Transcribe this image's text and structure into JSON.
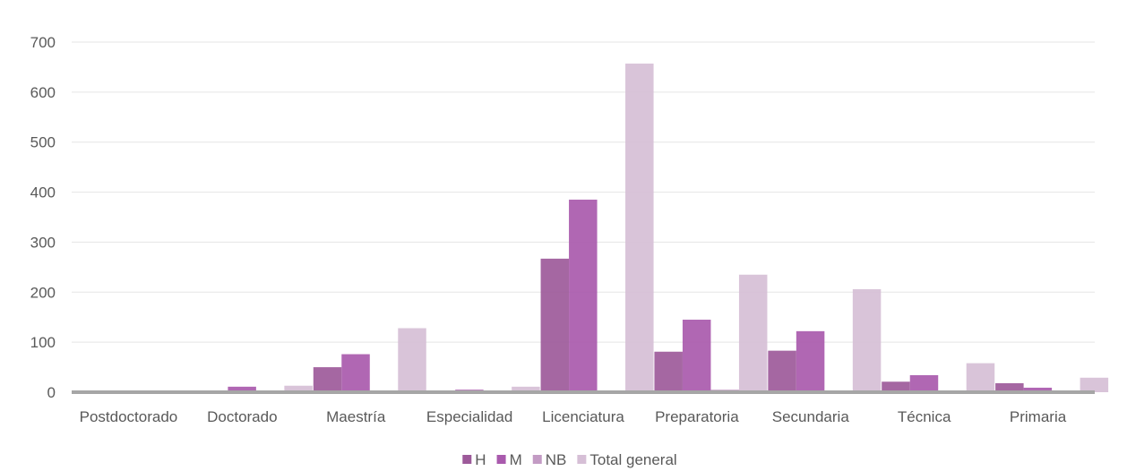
{
  "chart_data": {
    "type": "bar",
    "title": "",
    "xlabel": "",
    "ylabel": "",
    "categories": [
      "Postdoctorado",
      "Doctorado",
      "Maestría",
      "Especialidad",
      "Licenciatura",
      "Preparatoria",
      "Secundaria",
      "Técnica",
      "Primaria"
    ],
    "series": [
      {
        "name": "H",
        "color": "#9d5a9a",
        "values": [
          0,
          0,
          50,
          0,
          267,
          81,
          83,
          21,
          18
        ]
      },
      {
        "name": "M",
        "color": "#a95aad",
        "values": [
          0,
          11,
          76,
          5,
          385,
          145,
          122,
          34,
          9
        ]
      },
      {
        "name": "NB",
        "color": "#c39bc4",
        "values": [
          0,
          0,
          0,
          0,
          3,
          5,
          0,
          0,
          0
        ]
      },
      {
        "name": "Total general",
        "color": "#d6bfd6",
        "values": [
          0,
          13,
          128,
          11,
          657,
          235,
          206,
          58,
          29
        ]
      }
    ],
    "ylim": [
      0,
      700
    ],
    "yticks": [
      0,
      100,
      200,
      300,
      400,
      500,
      600,
      700
    ],
    "grid": true,
    "legend": "bottom-center",
    "gridline_color": "#e5e5e5",
    "axis_color": "#a6a6a6",
    "text_color": "#595959"
  }
}
